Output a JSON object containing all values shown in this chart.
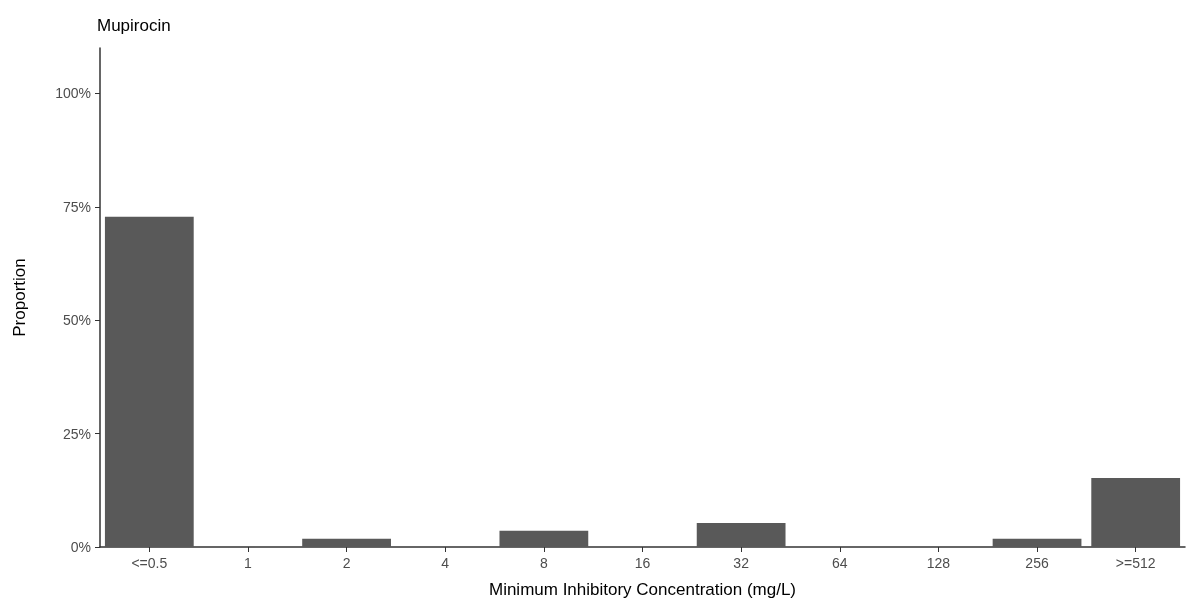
{
  "chart_data": {
    "type": "bar",
    "title": "Mupirocin",
    "xlabel": "Minimum Inhibitory Concentration (mg/L)",
    "ylabel": "Proportion",
    "categories": [
      "<=0.5",
      "1",
      "2",
      "4",
      "8",
      "16",
      "32",
      "64",
      "128",
      "256",
      ">=512"
    ],
    "values": [
      72.8,
      0,
      1.8,
      0,
      3.6,
      0,
      5.3,
      0,
      0,
      1.8,
      15.2
    ],
    "color": "#595959",
    "ylim": [
      0,
      110
    ],
    "yticks": [
      {
        "value": 0,
        "label": "0%"
      },
      {
        "value": 25,
        "label": "25%"
      },
      {
        "value": 50,
        "label": "50%"
      },
      {
        "value": 75,
        "label": "75%"
      },
      {
        "value": 100,
        "label": "100%"
      }
    ],
    "grid": false
  }
}
